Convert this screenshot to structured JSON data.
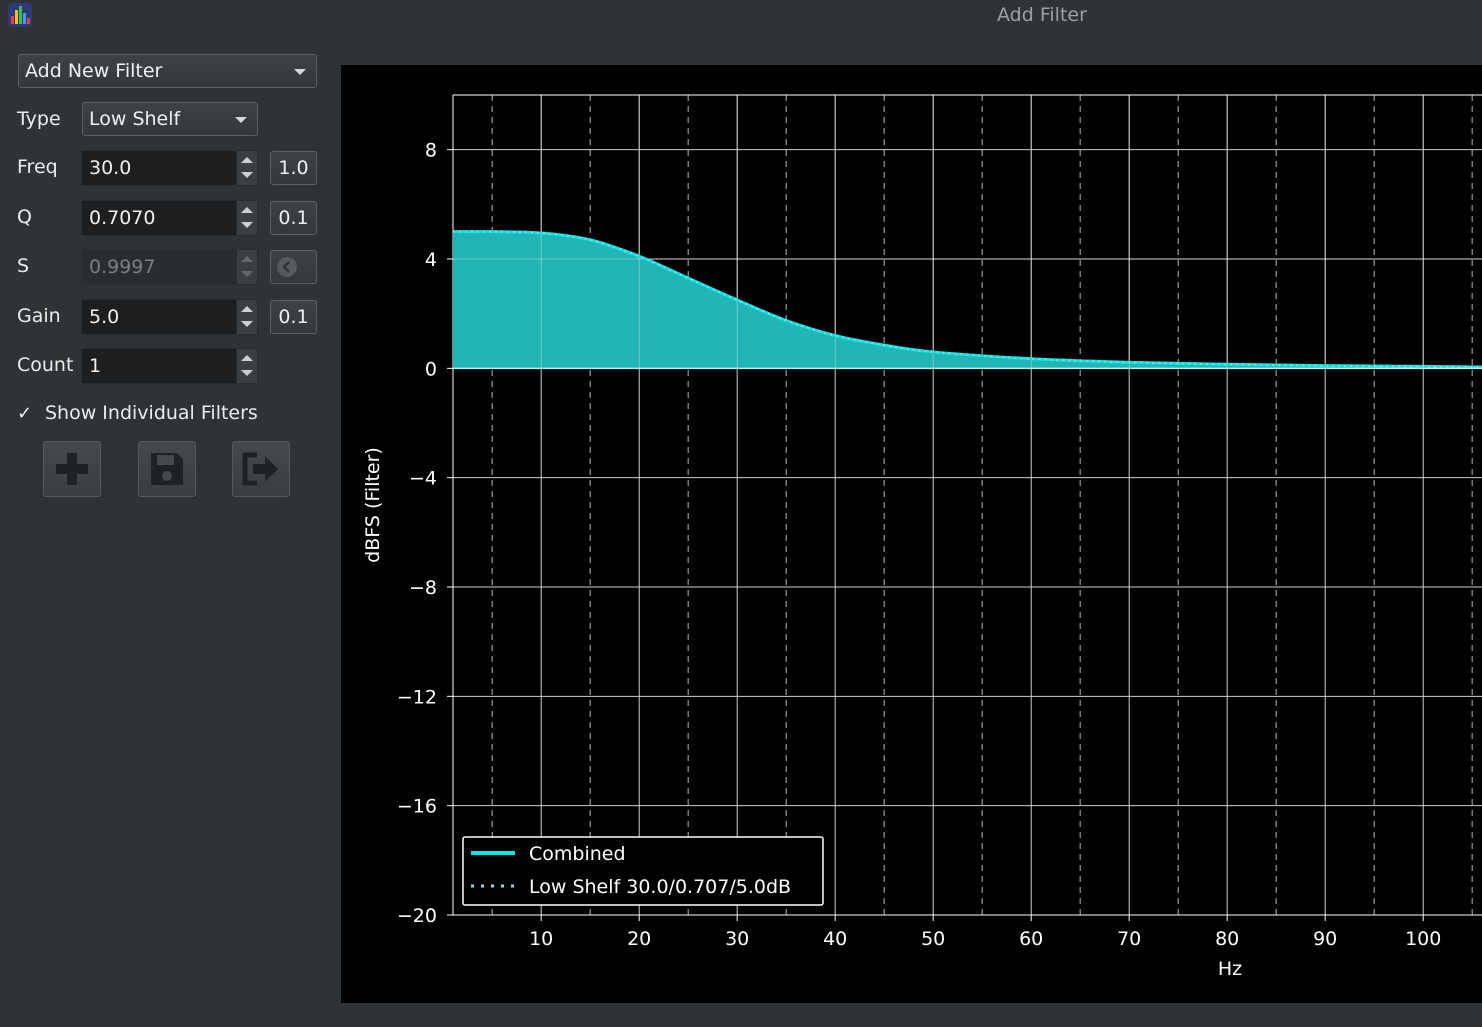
{
  "window": {
    "title": "Add Filter"
  },
  "controls": {
    "filter_select": "Add New Filter",
    "type": {
      "label": "Type",
      "value": "Low Shelf"
    },
    "freq": {
      "label": "Freq",
      "value": "30.0",
      "step": "1.0"
    },
    "q": {
      "label": "Q",
      "value": "0.7070",
      "step": "0.1"
    },
    "s": {
      "label": "S",
      "value": "0.9997"
    },
    "gain": {
      "label": "Gain",
      "value": "5.0",
      "step": "0.1"
    },
    "count": {
      "label": "Count",
      "value": "1"
    },
    "show_individual": {
      "label": "Show Individual Filters",
      "checked": true,
      "mark": "✓"
    },
    "buttons": [
      "add-icon",
      "save-icon",
      "exit-icon"
    ]
  },
  "chart_data": {
    "type": "area",
    "ylabel": "dBFS (Filter)",
    "xlabel": "Hz",
    "xlim": [
      1,
      106
    ],
    "ylim": [
      -20,
      10
    ],
    "x_ticks": [
      10,
      20,
      30,
      40,
      50,
      60,
      70,
      80,
      90,
      100
    ],
    "y_ticks": [
      8,
      4,
      0,
      -4,
      -8,
      -12,
      -16,
      -20
    ],
    "y_tick_labels": [
      "8",
      "4",
      "0",
      "−4",
      "−8",
      "−12",
      "−16",
      "−20"
    ],
    "minor_x_grid": [
      5,
      15,
      25,
      35,
      45,
      55,
      65,
      75,
      85,
      95,
      105
    ],
    "grid": true,
    "legend": {
      "position": "lower-left",
      "entries": [
        "Combined",
        "Low Shelf 30.0/0.707/5.0dB"
      ]
    },
    "series": [
      {
        "name": "Combined",
        "style": "solid",
        "color": "#00e5e5",
        "fill": "#22b5b5",
        "x": [
          1,
          5,
          10,
          15,
          20,
          25,
          30,
          35,
          40,
          45,
          50,
          60,
          70,
          80,
          90,
          100,
          106
        ],
        "y": [
          5.0,
          5.0,
          4.95,
          4.7,
          4.1,
          3.3,
          2.5,
          1.75,
          1.2,
          0.85,
          0.6,
          0.35,
          0.22,
          0.15,
          0.1,
          0.07,
          0.05
        ]
      },
      {
        "name": "Low Shelf 30.0/0.707/5.0dB",
        "style": "dotted",
        "color": "#8fd8d8",
        "x": [
          1,
          5,
          10,
          15,
          20,
          25,
          30,
          35,
          40,
          45,
          50,
          60,
          70,
          80,
          90,
          100,
          106
        ],
        "y": [
          5.0,
          5.0,
          4.95,
          4.7,
          4.1,
          3.3,
          2.5,
          1.75,
          1.2,
          0.85,
          0.6,
          0.35,
          0.22,
          0.15,
          0.1,
          0.07,
          0.05
        ]
      }
    ]
  }
}
